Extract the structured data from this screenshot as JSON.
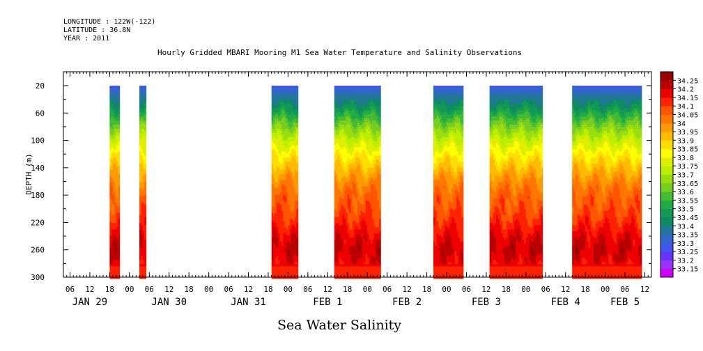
{
  "header": {
    "longitude": "LONGITUDE : 122W(-122)",
    "latitude": "LATITUDE : 36.8N",
    "year": "YEAR : 2011"
  },
  "chart_data": {
    "type": "heatmap",
    "title": "Hourly Gridded MBARI Mooring M1 Sea Water Temperature and Salinity Observations",
    "xlabel": "Sea Water Salinity",
    "ylabel": "DEPTH (m)",
    "y_axis": {
      "range": [
        20,
        300
      ],
      "reversed": true,
      "ticks": [
        20,
        60,
        100,
        140,
        180,
        220,
        260,
        300
      ]
    },
    "x_axis": {
      "range_hours": [
        0,
        178
      ],
      "hour_ticks": [
        {
          "h": 2,
          "label": "06"
        },
        {
          "h": 8,
          "label": "12"
        },
        {
          "h": 14,
          "label": "18"
        },
        {
          "h": 20,
          "label": "00"
        },
        {
          "h": 26,
          "label": "06"
        },
        {
          "h": 32,
          "label": "12"
        },
        {
          "h": 38,
          "label": "18"
        },
        {
          "h": 44,
          "label": "00"
        },
        {
          "h": 50,
          "label": "06"
        },
        {
          "h": 56,
          "label": "12"
        },
        {
          "h": 62,
          "label": "18"
        },
        {
          "h": 68,
          "label": "00"
        },
        {
          "h": 74,
          "label": "06"
        },
        {
          "h": 80,
          "label": "12"
        },
        {
          "h": 86,
          "label": "18"
        },
        {
          "h": 92,
          "label": "00"
        },
        {
          "h": 98,
          "label": "06"
        },
        {
          "h": 104,
          "label": "12"
        },
        {
          "h": 110,
          "label": "18"
        },
        {
          "h": 116,
          "label": "00"
        },
        {
          "h": 122,
          "label": "06"
        },
        {
          "h": 128,
          "label": "12"
        },
        {
          "h": 134,
          "label": "18"
        },
        {
          "h": 140,
          "label": "00"
        },
        {
          "h": 146,
          "label": "06"
        },
        {
          "h": 152,
          "label": "12"
        },
        {
          "h": 158,
          "label": "18"
        },
        {
          "h": 164,
          "label": "00"
        },
        {
          "h": 170,
          "label": "06"
        },
        {
          "h": 176,
          "label": "12"
        }
      ],
      "day_labels": [
        {
          "h": 8,
          "label": "JAN 29"
        },
        {
          "h": 32,
          "label": "JAN 30"
        },
        {
          "h": 56,
          "label": "JAN 31"
        },
        {
          "h": 80,
          "label": "FEB  1"
        },
        {
          "h": 104,
          "label": "FEB  2"
        },
        {
          "h": 128,
          "label": "FEB  3"
        },
        {
          "h": 152,
          "label": "FEB  4"
        },
        {
          "h": 170,
          "label": "FEB  5"
        }
      ]
    },
    "data_blocks_hours": [
      [
        14,
        17
      ],
      [
        23,
        25
      ],
      [
        63,
        71
      ],
      [
        82,
        96
      ],
      [
        112,
        121
      ],
      [
        129,
        145
      ],
      [
        154,
        175
      ]
    ],
    "profile_depths": [
      20,
      35,
      50,
      65,
      80,
      95,
      110,
      125,
      140,
      155,
      170,
      185,
      200,
      215,
      230,
      245,
      260,
      275,
      290,
      300
    ],
    "mean_profile_salinity": [
      33.28,
      33.37,
      33.45,
      33.55,
      33.64,
      33.72,
      33.79,
      33.86,
      33.92,
      33.98,
      34.03,
      34.06,
      34.08,
      34.11,
      34.15,
      34.19,
      34.21,
      34.19,
      34.13,
      34.12
    ],
    "colorbar": {
      "levels": [
        33.15,
        33.2,
        33.25,
        33.3,
        33.35,
        33.4,
        33.45,
        33.5,
        33.55,
        33.6,
        33.65,
        33.7,
        33.75,
        33.8,
        33.85,
        33.9,
        33.95,
        34,
        34.05,
        34.1,
        34.15,
        34.2,
        34.25
      ],
      "labels": [
        "33.15",
        "33.2",
        "33.25",
        "33.3",
        "33.35",
        "33.4",
        "33.45",
        "33.5",
        "33.55",
        "33.6",
        "33.65",
        "33.7",
        "33.75",
        "33.8",
        "33.85",
        "33.9",
        "33.95",
        "34",
        "34.05",
        "34.1",
        "34.15",
        "34.2",
        "34.25"
      ],
      "colors": [
        "#cc00ff",
        "#9933ff",
        "#6633ff",
        "#4455ee",
        "#3366cc",
        "#227799",
        "#118866",
        "#119955",
        "#22aa44",
        "#44bb33",
        "#77cc22",
        "#99dd11",
        "#bbee00",
        "#ddee00",
        "#ffff00",
        "#ffdd00",
        "#ffbb00",
        "#ff9900",
        "#ff7700",
        "#ff5500",
        "#ff2200",
        "#ee0000",
        "#bb0000",
        "#990000"
      ]
    }
  }
}
